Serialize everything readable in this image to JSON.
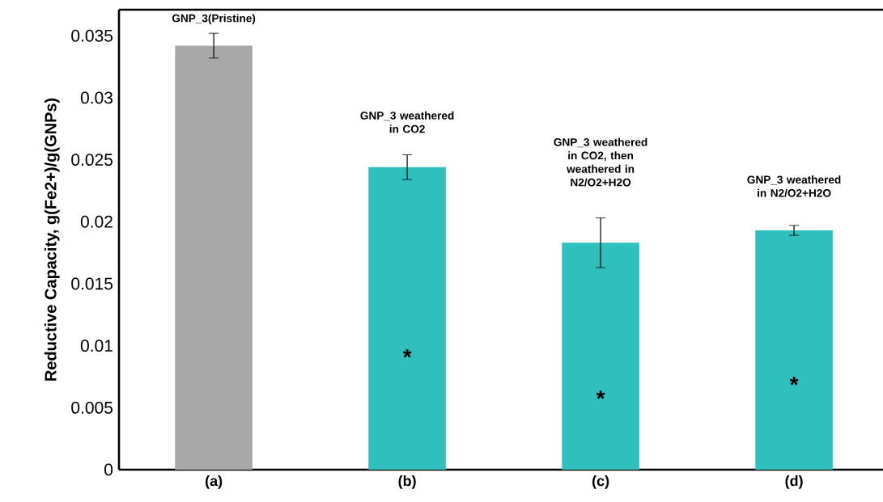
{
  "chart_data": {
    "type": "bar",
    "ylabel": "Reductive Capacity, g(Fe2+)/g(GNPs)",
    "categories": [
      "(a)",
      "(b)",
      "(c)",
      "(d)"
    ],
    "values": [
      0.0342,
      0.0244,
      0.0183,
      0.0193
    ],
    "errors": [
      0.001,
      0.001,
      0.002,
      0.0004
    ],
    "colors": [
      "#a8a8a8",
      "#2fbfbd",
      "#2fbfbd",
      "#2fbfbd"
    ],
    "ylim": [
      0,
      0.0371
    ],
    "yticks": [
      0,
      0.005,
      0.01,
      0.015,
      0.02,
      0.025,
      0.03,
      0.035
    ],
    "grid": false,
    "annotations": [
      "GNP_3(Pristine)",
      "GNP_3 weathered in CO2",
      "GNP_3 weathered in CO2, then weathered in N2/O2+H2O",
      "GNP_3 weathered in N2/O2+H2O",
      "*",
      "*",
      "*"
    ]
  }
}
